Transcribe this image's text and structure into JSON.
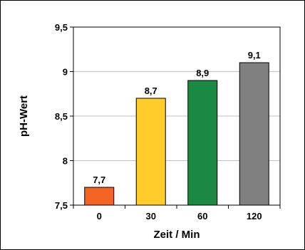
{
  "chart_data": {
    "type": "bar",
    "categories": [
      "0",
      "30",
      "60",
      "120"
    ],
    "values": [
      7.7,
      8.7,
      8.9,
      9.1
    ],
    "value_labels": [
      "7,7",
      "8,7",
      "8,9",
      "9,1"
    ],
    "bar_colors": [
      "#f26522",
      "#ffcc29",
      "#1a8a43",
      "#808080"
    ],
    "xlabel": "Zeit / Min",
    "ylabel": "pH-Wert",
    "ylim": [
      7.5,
      9.5
    ],
    "yticks": [
      7.5,
      8,
      8.5,
      9,
      9.5
    ],
    "ytick_labels": [
      "7,5",
      "8",
      "8,5",
      "9",
      "9,5"
    ],
    "grid": true,
    "legend": false
  }
}
